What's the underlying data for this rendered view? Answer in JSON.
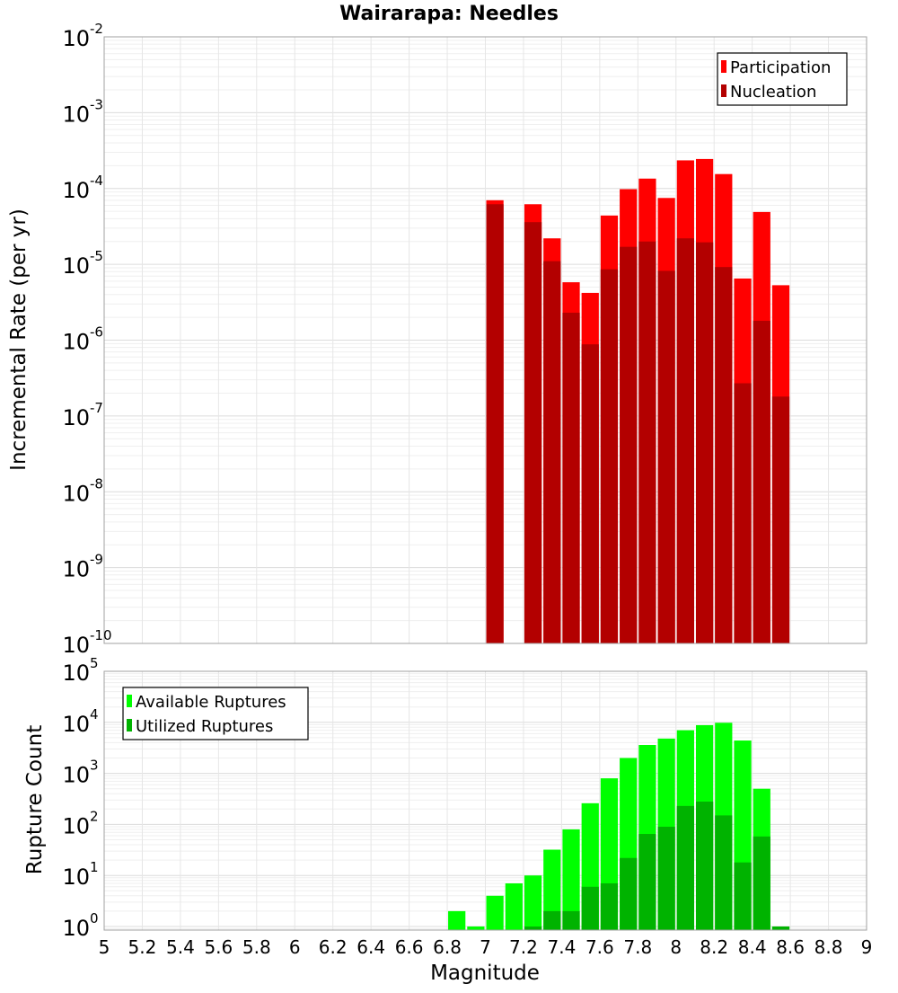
{
  "chart_data": [
    {
      "type": "bar",
      "title": "Wairarapa: Needles",
      "xlabel": "",
      "ylabel": "Incremental Rate (per yr)",
      "yscale": "log",
      "ylim": [
        1e-10,
        0.01
      ],
      "xlim": [
        5,
        9
      ],
      "y_tick_labels": [
        {
          "base": "10",
          "exp": "-10",
          "value": 1e-10
        },
        {
          "base": "10",
          "exp": "-9",
          "value": 1e-09
        },
        {
          "base": "10",
          "exp": "-8",
          "value": 1e-08
        },
        {
          "base": "10",
          "exp": "-7",
          "value": 1e-07
        },
        {
          "base": "10",
          "exp": "-6",
          "value": 1e-06
        },
        {
          "base": "10",
          "exp": "-5",
          "value": 1e-05
        },
        {
          "base": "10",
          "exp": "-4",
          "value": 0.0001
        },
        {
          "base": "10",
          "exp": "-3",
          "value": 0.001
        },
        {
          "base": "10",
          "exp": "-2",
          "value": 0.01
        }
      ],
      "grid": true,
      "legend_position": "top-right",
      "bin_width": 0.1,
      "x": [
        7.05,
        7.25,
        7.35,
        7.45,
        7.55,
        7.65,
        7.75,
        7.85,
        7.95,
        8.05,
        8.15,
        8.25,
        8.35,
        8.45,
        8.55
      ],
      "series": [
        {
          "name": "Participation",
          "color": "#ff0000",
          "values": [
            7e-05,
            6.2e-05,
            2.2e-05,
            5.8e-06,
            4.2e-06,
            4.4e-05,
            9.8e-05,
            0.000135,
            7.5e-05,
            0.000235,
            0.000245,
            0.000155,
            6.5e-06,
            4.9e-05,
            5.3e-06
          ]
        },
        {
          "name": "Nucleation",
          "color": "#b30000",
          "values": [
            6.2e-05,
            3.6e-05,
            1.1e-05,
            2.3e-06,
            8.8e-07,
            8.6e-06,
            1.7e-05,
            2e-05,
            8.2e-06,
            2.2e-05,
            1.95e-05,
            9.2e-06,
            2.7e-07,
            1.8e-06,
            1.8e-07
          ]
        }
      ]
    },
    {
      "type": "bar",
      "title": "",
      "xlabel": "Magnitude",
      "ylabel": "Rupture Count",
      "yscale": "log",
      "ylim": [
        0.85,
        100000.0
      ],
      "xlim": [
        5,
        9
      ],
      "x_tick_labels": [
        "5",
        "5.2",
        "5.4",
        "5.6",
        "5.8",
        "6",
        "6.2",
        "6.4",
        "6.6",
        "6.8",
        "7",
        "7.2",
        "7.4",
        "7.6",
        "7.8",
        "8",
        "8.2",
        "8.4",
        "8.6",
        "8.8",
        "9"
      ],
      "y_tick_labels": [
        {
          "base": "10",
          "exp": "0",
          "value": 1
        },
        {
          "base": "10",
          "exp": "1",
          "value": 10
        },
        {
          "base": "10",
          "exp": "2",
          "value": 100
        },
        {
          "base": "10",
          "exp": "3",
          "value": 1000
        },
        {
          "base": "10",
          "exp": "4",
          "value": 10000
        },
        {
          "base": "10",
          "exp": "5",
          "value": 100000
        }
      ],
      "grid": true,
      "legend_position": "top-left",
      "bin_width": 0.1,
      "x": [
        6.85,
        6.95,
        7.05,
        7.15,
        7.25,
        7.35,
        7.45,
        7.55,
        7.65,
        7.75,
        7.85,
        7.95,
        8.05,
        8.15,
        8.25,
        8.35,
        8.45,
        8.55
      ],
      "series": [
        {
          "name": "Available Ruptures",
          "color": "#00ff00",
          "values": [
            2,
            1,
            4,
            7,
            10,
            32,
            80,
            260,
            800,
            2000,
            3600,
            4800,
            7000,
            8800,
            9800,
            4400,
            500,
            1
          ]
        },
        {
          "name": "Utilized Ruptures",
          "color": "#00b300",
          "values": [
            0,
            0,
            0,
            0,
            1,
            2,
            2,
            6,
            7,
            22,
            65,
            90,
            230,
            280,
            150,
            18,
            58,
            1
          ]
        }
      ]
    }
  ]
}
